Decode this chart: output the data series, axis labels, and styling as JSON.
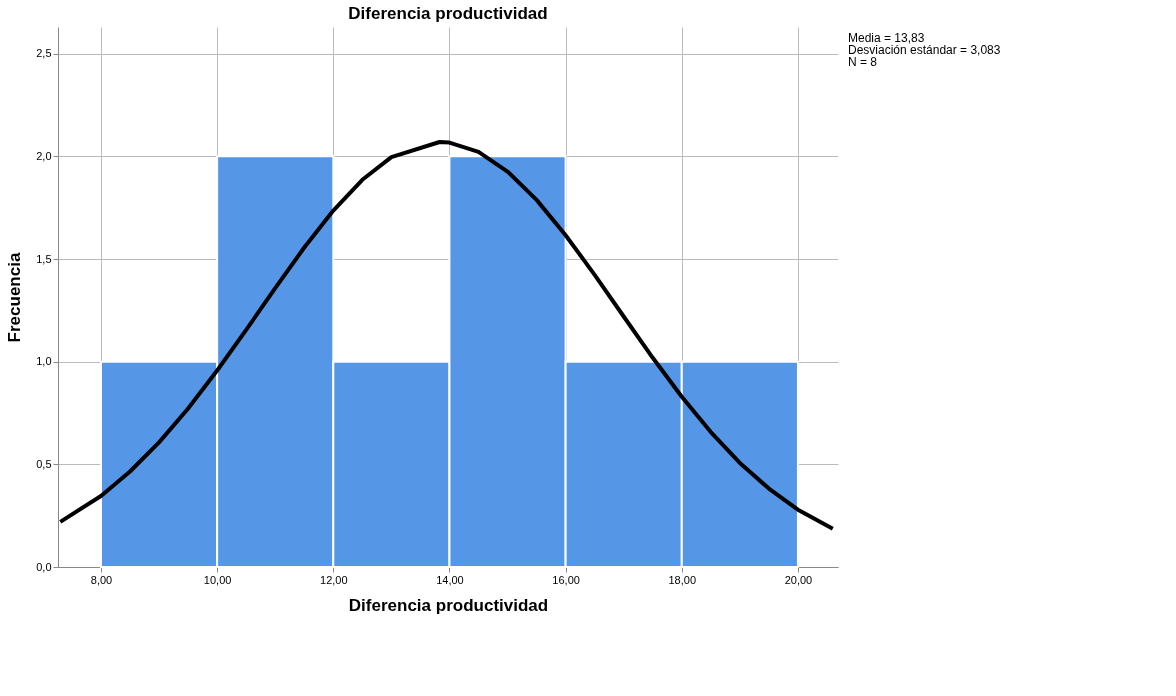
{
  "chart_data": {
    "type": "histogram",
    "title": "Diferencia productividad",
    "xlabel": "Diferencia productividad",
    "ylabel": "Frecuencia",
    "bins": [
      8,
      10,
      12,
      14,
      16,
      18,
      20
    ],
    "values": [
      1,
      2,
      1,
      2,
      1,
      1
    ],
    "color": "#5596e6",
    "series": [
      {
        "type": "line",
        "color": "#000000",
        "x": [
          7.3,
          8,
          8.5,
          9,
          9.5,
          10,
          10.5,
          11,
          11.5,
          12,
          12.5,
          13,
          13.83,
          14,
          14.5,
          15,
          15.5,
          16,
          16.5,
          17,
          17.5,
          18,
          18.5,
          19,
          19.5,
          20,
          20.6
        ],
        "values": [
          0.22,
          0.346,
          0.465,
          0.607,
          0.772,
          0.957,
          1.155,
          1.358,
          1.556,
          1.736,
          1.886,
          1.996,
          2.07,
          2.067,
          2.022,
          1.926,
          1.788,
          1.616,
          1.423,
          1.22,
          1.019,
          0.829,
          0.657,
          0.507,
          0.382,
          0.279,
          0.186
        ]
      }
    ],
    "xlim": [
      7.26,
      20.69
    ],
    "ylim": [
      0,
      2.63
    ],
    "xticks": [
      {
        "value": 8,
        "label": "8,00"
      },
      {
        "value": 10,
        "label": "10,00"
      },
      {
        "value": 12,
        "label": "12,00"
      },
      {
        "value": 14,
        "label": "14,00"
      },
      {
        "value": 16,
        "label": "16,00"
      },
      {
        "value": 18,
        "label": "18,00"
      },
      {
        "value": 20,
        "label": "20,00"
      }
    ],
    "yticks": [
      {
        "value": 0,
        "label": "0,0"
      },
      {
        "value": 0.5,
        "label": "0,5"
      },
      {
        "value": 1,
        "label": "1,0"
      },
      {
        "value": 1.5,
        "label": "1,5"
      },
      {
        "value": 2,
        "label": "2,0"
      },
      {
        "value": 2.5,
        "label": "2,5"
      }
    ],
    "grid": true,
    "annotations": [
      "Media = 13,83",
      "Desviación estándar = 3,083",
      "N = 8"
    ]
  }
}
